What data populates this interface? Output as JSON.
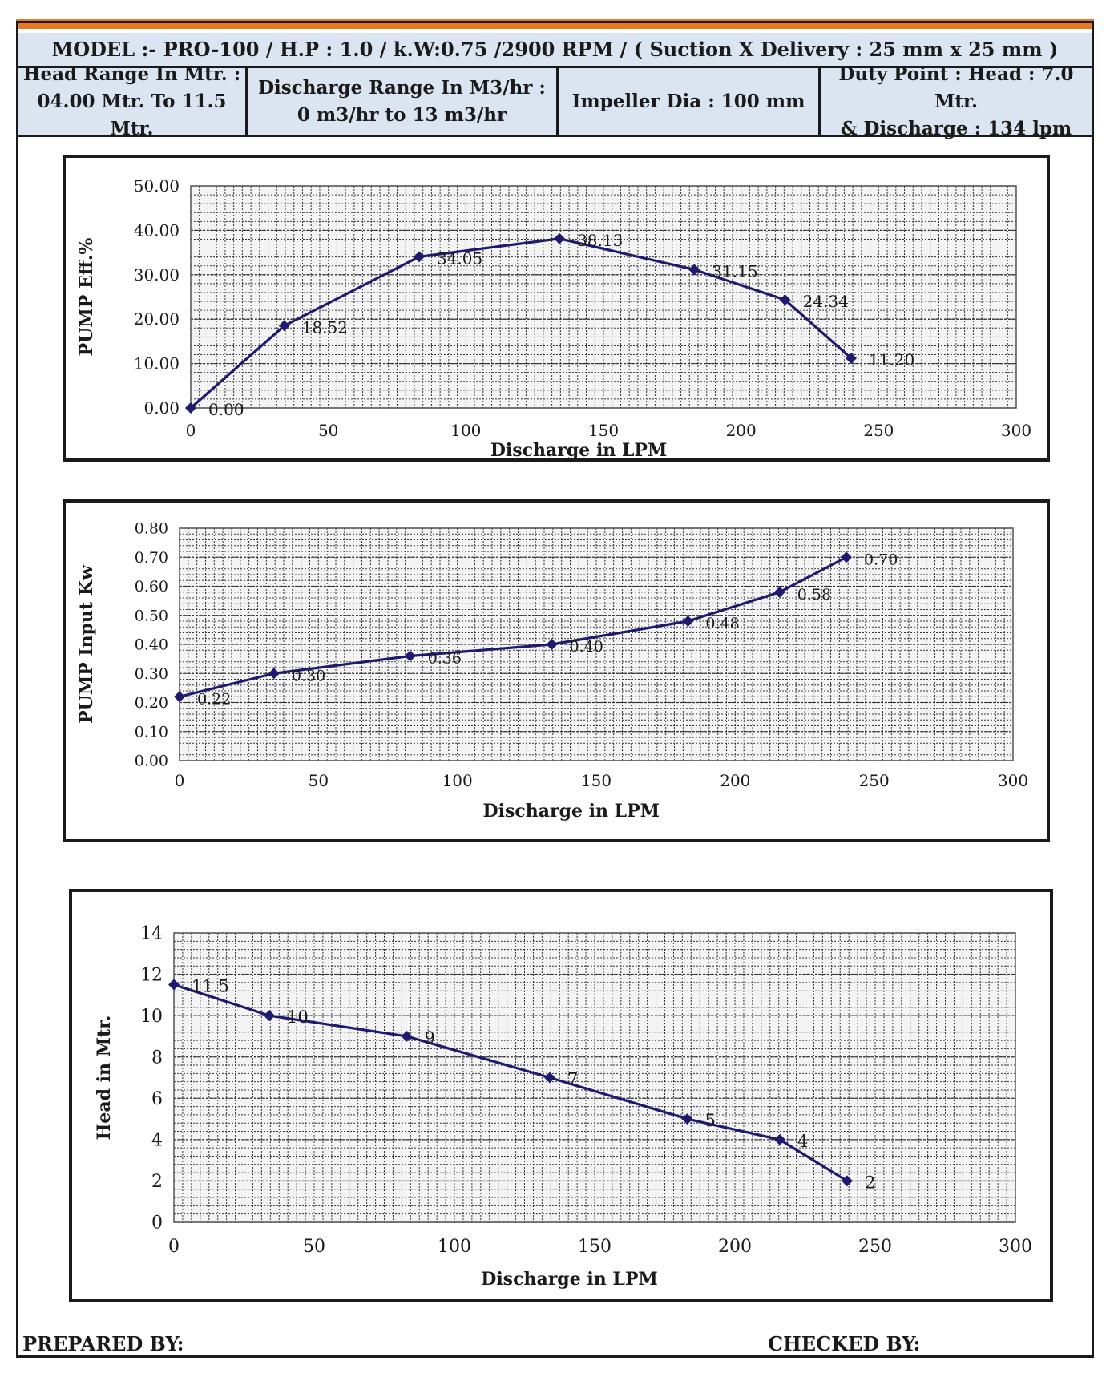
{
  "header": {
    "model_line": "MODEL :- PRO-100 / H.P : 1.0 / k.W:0.75 /2900 RPM / ( Suction X Delivery : 25 mm x 25 mm )",
    "head_range_l1": "Head Range In Mtr. :",
    "head_range_l2": "04.00 Mtr. To 11.5 Mtr.",
    "discharge_range_l1": "Discharge Range In M3/hr :",
    "discharge_range_l2": "0 m3/hr to 13 m3/hr",
    "impeller": "Impeller Dia : 100 mm",
    "duty_l1": "Duty Point : Head : 7.0 Mtr.",
    "duty_l2": "& Discharge : 134 lpm"
  },
  "colors": {
    "accent": "#e87722",
    "header_bg": "#dbe5f1",
    "series": "#1f1a6e",
    "grid": "#333333"
  },
  "chart_data": [
    {
      "type": "line",
      "title": "",
      "xlabel": "Discharge in LPM",
      "ylabel": "PUMP Eff.%",
      "x": [
        0,
        34,
        83,
        134,
        183,
        216,
        240
      ],
      "values": [
        0.0,
        18.52,
        34.05,
        38.13,
        31.15,
        24.34,
        11.2
      ],
      "data_labels": [
        "0.00",
        "18.52",
        "34.05",
        "38.13",
        "31.15",
        "24.34",
        "11.20"
      ],
      "xlim": [
        0,
        300
      ],
      "ylim": [
        0,
        50
      ],
      "xticks": [
        0,
        50,
        100,
        150,
        200,
        250,
        300
      ],
      "xtick_labels": [
        "0",
        "50",
        "100",
        "150",
        "200",
        "250",
        "300"
      ],
      "yticks": [
        0,
        10,
        20,
        30,
        40,
        50
      ],
      "ytick_labels": [
        "0.00",
        "10.00",
        "20.00",
        "30.00",
        "40.00",
        "50.00"
      ],
      "grid": true
    },
    {
      "type": "line",
      "title": "",
      "xlabel": "Discharge in LPM",
      "ylabel": "PUMP  Input Kw",
      "x": [
        0,
        34,
        83,
        134,
        183,
        216,
        240
      ],
      "values": [
        0.22,
        0.3,
        0.36,
        0.4,
        0.48,
        0.58,
        0.7
      ],
      "data_labels": [
        "0.22",
        "0.30",
        "0.36",
        "0.40",
        "0.48",
        "0.58",
        "0.70"
      ],
      "xlim": [
        0,
        300
      ],
      "ylim": [
        0,
        0.8
      ],
      "xticks": [
        0,
        50,
        100,
        150,
        200,
        250,
        300
      ],
      "xtick_labels": [
        "0",
        "50",
        "100",
        "150",
        "200",
        "250",
        "300"
      ],
      "yticks": [
        0,
        0.1,
        0.2,
        0.3,
        0.4,
        0.5,
        0.6,
        0.7,
        0.8
      ],
      "ytick_labels": [
        "0.00",
        "0.10",
        "0.20",
        "0.30",
        "0.40",
        "0.50",
        "0.60",
        "0.70",
        "0.80"
      ],
      "grid": true
    },
    {
      "type": "line",
      "title": "",
      "xlabel": "Discharge in LPM",
      "ylabel": "Head in Mtr.",
      "x": [
        0,
        34,
        83,
        134,
        183,
        216,
        240
      ],
      "values": [
        11.5,
        10,
        9,
        7,
        5,
        4,
        2
      ],
      "data_labels": [
        "11.5",
        "10",
        "9",
        "7",
        "5",
        "4",
        "2"
      ],
      "xlim": [
        0,
        300
      ],
      "ylim": [
        0,
        14
      ],
      "xticks": [
        0,
        50,
        100,
        150,
        200,
        250,
        300
      ],
      "xtick_labels": [
        "0",
        "50",
        "100",
        "150",
        "200",
        "250",
        "300"
      ],
      "yticks": [
        0,
        2,
        4,
        6,
        8,
        10,
        12,
        14
      ],
      "ytick_labels": [
        "0",
        "2",
        "4",
        "6",
        "8",
        "10",
        "12",
        "14"
      ],
      "grid": true
    }
  ],
  "footer": {
    "prepared": "PREPARED BY:",
    "checked": "CHECKED BY:"
  }
}
